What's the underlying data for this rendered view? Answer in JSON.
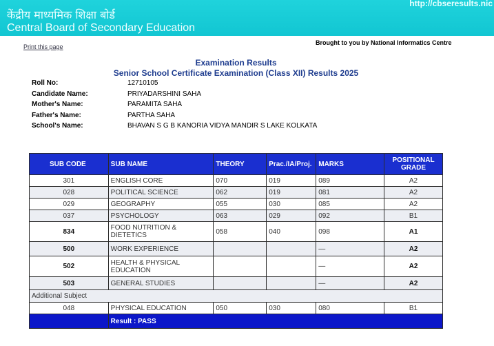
{
  "header": {
    "url": "http://cbseresults.nic",
    "hindi": "केंद्रीय माध्यमिक शिक्षा बोर्ड",
    "english": "Central Board of Secondary Education"
  },
  "print_link": "Print this page",
  "brought": "Brought to you by National Informatics Centre",
  "title": "Examination Results",
  "subtitle": "Senior School Certificate Examination (Class XII) Results 2025",
  "info": [
    {
      "label": "Roll No:",
      "value": "12710105"
    },
    {
      "label": "Candidate Name:",
      "value": "PRIYADARSHINI SAHA"
    },
    {
      "label": "Mother's Name:",
      "value": "PARAMITA SAHA"
    },
    {
      "label": "Father's Name:",
      "value": "PARTHA SAHA"
    },
    {
      "label": "School's Name:",
      "value": "BHAVAN S G B KANORIA VIDYA MANDIR S LAKE KOLKATA"
    }
  ],
  "table": {
    "headers": [
      "SUB CODE",
      "SUB NAME",
      "THEORY",
      "Prac./IA/Proj.",
      "MARKS",
      "POSITIONAL GRADE"
    ],
    "rows": [
      [
        "301",
        "ENGLISH CORE",
        "070",
        "019",
        "089",
        "A2"
      ],
      [
        "028",
        "POLITICAL SCIENCE",
        "062",
        "019",
        "081",
        "A2"
      ],
      [
        "029",
        "GEOGRAPHY",
        "055",
        "030",
        "085",
        "A2"
      ],
      [
        "037",
        "PSYCHOLOGY",
        "063",
        "029",
        "092",
        "B1"
      ],
      [
        "834",
        "FOOD NUTRITION & DIETETICS",
        "058",
        "040",
        "098",
        "A1"
      ],
      [
        "500",
        "WORK EXPERIENCE",
        "",
        "",
        "—",
        "A2"
      ],
      [
        "502",
        "HEALTH & PHYSICAL EDUCATION",
        "",
        "",
        "—",
        "A2"
      ],
      [
        "503",
        "GENERAL STUDIES",
        "",
        "",
        "—",
        "A2"
      ]
    ],
    "additional_label": "Additional Subject",
    "additional": [
      "048",
      "PHYSICAL EDUCATION",
      "050",
      "030",
      "080",
      "B1"
    ],
    "result": "Result :  PASS"
  }
}
